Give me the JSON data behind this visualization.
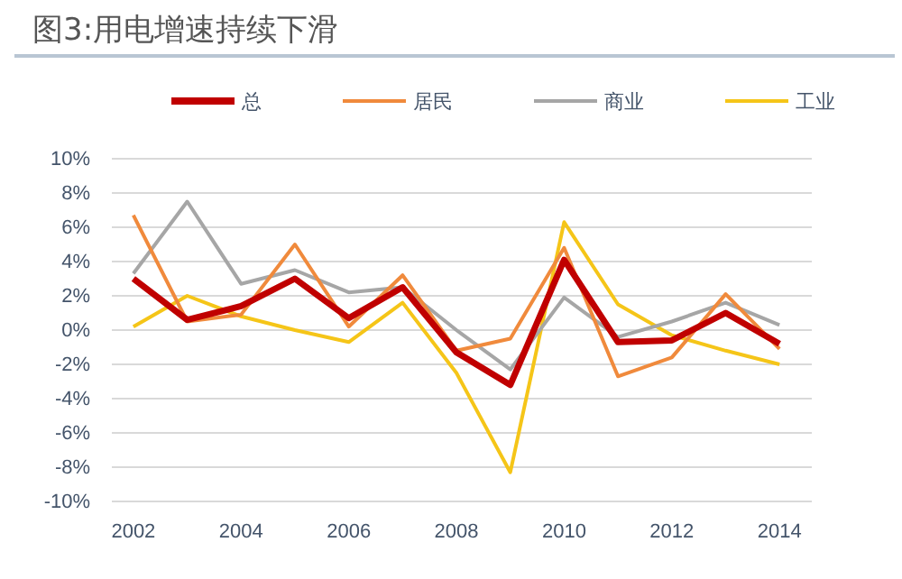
{
  "chart_data": {
    "type": "line",
    "title": "图3:用电增速持续下滑",
    "x": [
      2002,
      2003,
      2004,
      2005,
      2006,
      2007,
      2008,
      2009,
      2010,
      2011,
      2012,
      2013,
      2014
    ],
    "series": [
      {
        "name": "总",
        "color": "#c00000",
        "values": [
          3.0,
          0.6,
          1.4,
          3.0,
          0.7,
          2.5,
          -1.3,
          -3.2,
          4.1,
          -0.7,
          -0.6,
          1.0,
          -0.8
        ]
      },
      {
        "name": "居民",
        "color": "#f08a3c",
        "values": [
          6.7,
          0.5,
          0.9,
          5.0,
          0.2,
          3.2,
          -1.2,
          -0.5,
          4.8,
          -2.7,
          -1.6,
          2.1,
          -1.1
        ]
      },
      {
        "name": "商业",
        "color": "#a6a6a6",
        "values": [
          3.3,
          7.5,
          2.7,
          3.5,
          2.2,
          2.5,
          0.0,
          -2.3,
          1.9,
          -0.4,
          0.5,
          1.6,
          0.3
        ]
      },
      {
        "name": "工业",
        "color": "#f5c518",
        "values": [
          0.2,
          2.0,
          0.8,
          0.0,
          -0.7,
          1.6,
          -2.5,
          -8.3,
          6.3,
          1.5,
          -0.3,
          -1.2,
          -2.0
        ]
      }
    ],
    "xlim": [
      2001.6,
      2014.6
    ],
    "xticks": [
      2002,
      2004,
      2006,
      2008,
      2010,
      2012,
      2014
    ],
    "ylim": [
      -10,
      10
    ],
    "yticks": [
      {
        "value": -10,
        "label": "-10%"
      },
      {
        "value": -8,
        "label": "-8%"
      },
      {
        "value": -6,
        "label": "-6%"
      },
      {
        "value": -4,
        "label": "-4%"
      },
      {
        "value": -2,
        "label": "-2%"
      },
      {
        "value": 0,
        "label": "0%"
      },
      {
        "value": 2,
        "label": "2%"
      },
      {
        "value": 4,
        "label": "4%"
      },
      {
        "value": 6,
        "label": "6%"
      },
      {
        "value": 8,
        "label": "8%"
      },
      {
        "value": 10,
        "label": "10%"
      }
    ],
    "grid": "y",
    "legend": "top",
    "marker": "none",
    "line_style": "solid"
  }
}
